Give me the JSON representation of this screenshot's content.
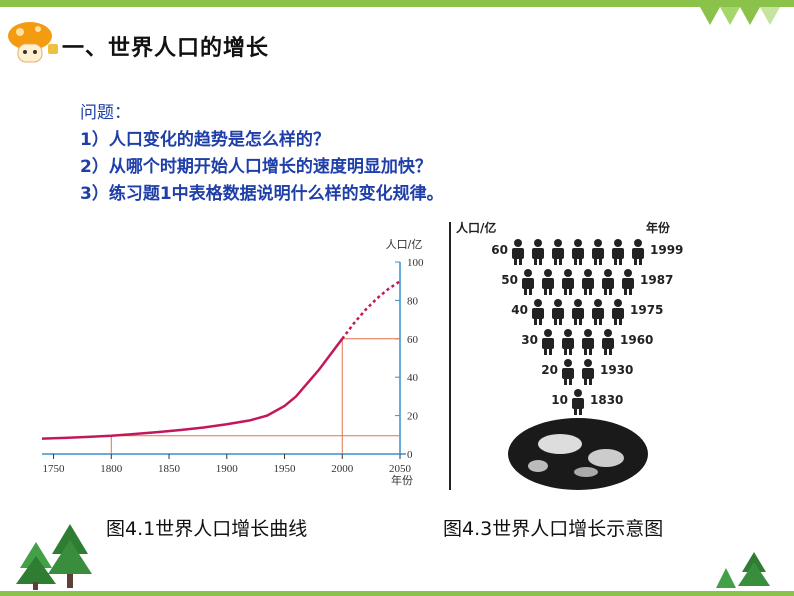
{
  "header": {
    "title": "一、世界人口的增长",
    "icons": [
      "mascot-icon",
      "triangle-decoration-icon"
    ]
  },
  "questions": {
    "heading": "问题：",
    "items": [
      "1）人口变化的趋势是怎么样的？",
      "2）从哪个时期开始人口增长的速度明显加快？",
      "3）练习题1中表格数据说明什么样的变化规律。"
    ]
  },
  "figure1": {
    "caption": "图4.1世界人口增长曲线",
    "y_unit": "人口/亿",
    "x_unit": "年份",
    "colors": {
      "curve": "#c2185b",
      "axis": "#3a8fd0",
      "guide": "#e0744a"
    }
  },
  "figure2": {
    "caption": "图4.3世界人口增长示意图",
    "y_header": "人口/亿",
    "year_header": "年份",
    "rows": [
      {
        "pop": "60",
        "year": "1999",
        "count": 7
      },
      {
        "pop": "50",
        "year": "1987",
        "count": 6
      },
      {
        "pop": "40",
        "year": "1975",
        "count": 5
      },
      {
        "pop": "30",
        "year": "1960",
        "count": 4
      },
      {
        "pop": "20",
        "year": "1930",
        "count": 2
      },
      {
        "pop": "10",
        "year": "1830",
        "count": 1
      }
    ]
  },
  "chart_data": {
    "type": "line",
    "x": [
      1750,
      1800,
      1850,
      1900,
      1950,
      2000,
      2050
    ],
    "xticks": [
      "1750",
      "1800",
      "1850",
      "1900",
      "1950",
      "2000",
      "2050"
    ],
    "yticks": [
      "0",
      "20",
      "40",
      "60",
      "80",
      "100"
    ],
    "xlim": [
      1740,
      2050
    ],
    "ylim": [
      0,
      100
    ],
    "xlabel": "年份",
    "ylabel": "人口/亿",
    "series": [
      {
        "x": [
          1740,
          1760,
          1780,
          1800,
          1820,
          1840,
          1860,
          1880,
          1900,
          1920,
          1935,
          1950,
          1960,
          1970,
          1980,
          1990,
          2000
        ],
        "values": [
          8,
          8.4,
          8.9,
          9.5,
          10.4,
          11.4,
          12.5,
          13.8,
          15.5,
          17.5,
          20,
          25,
          30,
          37,
          44,
          52,
          60
        ]
      },
      {
        "x": [
          2000,
          2010,
          2020,
          2030,
          2040,
          2050
        ],
        "values": [
          60,
          68,
          75,
          81,
          86,
          90
        ]
      }
    ],
    "guides": [
      {
        "x": 1800,
        "y": 9.5
      },
      {
        "x": 2000,
        "y": 60
      }
    ]
  }
}
